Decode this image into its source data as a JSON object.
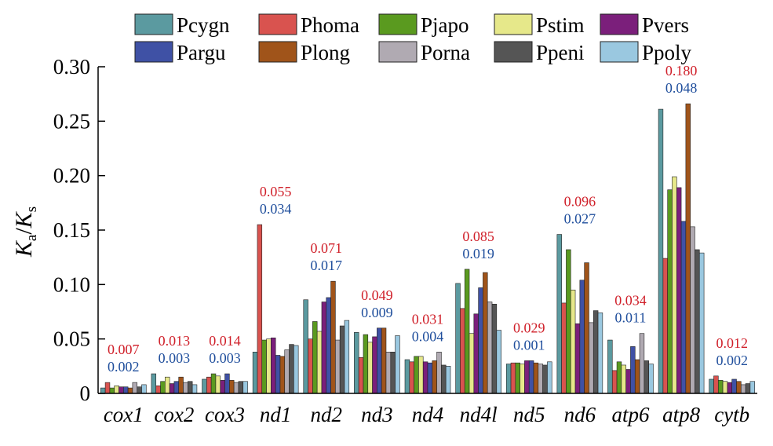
{
  "chart_data": {
    "type": "bar",
    "ylabel": {
      "main": "K",
      "sub1": "a",
      "slash": "/",
      "main2": "K",
      "sub2": "s"
    },
    "ylim": [
      0,
      0.3
    ],
    "yticks": [
      "0",
      "0.05",
      "0.10",
      "0.15",
      "0.20",
      "0.25",
      "0.30"
    ],
    "ytick_values": [
      0,
      0.05,
      0.1,
      0.15,
      0.2,
      0.25,
      0.3
    ],
    "legend_position": "top",
    "categories": [
      "cox1",
      "cox2",
      "cox3",
      "nd1",
      "nd2",
      "nd3",
      "nd4",
      "nd4l",
      "nd5",
      "nd6",
      "atp6",
      "atp8",
      "cytb"
    ],
    "series": [
      {
        "name": "Pcygn",
        "color": "#5b9aa0",
        "values": [
          0.005,
          0.018,
          0.013,
          0.038,
          0.086,
          0.056,
          0.031,
          0.101,
          0.027,
          0.146,
          0.049,
          0.261,
          0.013
        ]
      },
      {
        "name": "Phoma",
        "color": "#d9534f",
        "values": [
          0.01,
          0.007,
          0.015,
          0.155,
          0.05,
          0.033,
          0.029,
          0.078,
          0.028,
          0.083,
          0.021,
          0.124,
          0.016
        ]
      },
      {
        "name": "Pjapo",
        "color": "#5a9a1f",
        "values": [
          0.005,
          0.011,
          0.018,
          0.049,
          0.066,
          0.054,
          0.034,
          0.114,
          0.028,
          0.132,
          0.029,
          0.187,
          0.012
        ]
      },
      {
        "name": "Pstim",
        "color": "#e6e88a",
        "values": [
          0.007,
          0.015,
          0.016,
          0.05,
          0.057,
          0.047,
          0.034,
          0.055,
          0.027,
          0.095,
          0.026,
          0.199,
          0.011
        ]
      },
      {
        "name": "Pvers",
        "color": "#7b1f7b",
        "values": [
          0.006,
          0.009,
          0.012,
          0.051,
          0.084,
          0.052,
          0.029,
          0.073,
          0.03,
          0.064,
          0.022,
          0.189,
          0.01
        ]
      },
      {
        "name": "Pargu",
        "color": "#3f51a5",
        "values": [
          0.006,
          0.011,
          0.018,
          0.035,
          0.088,
          0.06,
          0.028,
          0.097,
          0.03,
          0.104,
          0.043,
          0.158,
          0.013
        ]
      },
      {
        "name": "Plong",
        "color": "#a0541a",
        "values": [
          0.005,
          0.015,
          0.012,
          0.034,
          0.103,
          0.06,
          0.03,
          0.111,
          0.028,
          0.12,
          0.031,
          0.266,
          0.011
        ]
      },
      {
        "name": "Porna",
        "color": "#b0aab2",
        "values": [
          0.01,
          0.01,
          0.01,
          0.04,
          0.049,
          0.038,
          0.038,
          0.084,
          0.027,
          0.065,
          0.055,
          0.153,
          0.008
        ]
      },
      {
        "name": "Ppeni",
        "color": "#555555",
        "values": [
          0.006,
          0.011,
          0.011,
          0.045,
          0.062,
          0.038,
          0.026,
          0.082,
          0.026,
          0.076,
          0.03,
          0.132,
          0.009
        ]
      },
      {
        "name": "Ppoly",
        "color": "#9ac8e0",
        "values": [
          0.008,
          0.008,
          0.011,
          0.044,
          0.067,
          0.053,
          0.025,
          0.058,
          0.029,
          0.074,
          0.027,
          0.129,
          0.011
        ]
      }
    ],
    "annotations": [
      {
        "category": "cox1",
        "red": "0.007",
        "blue": "0.002"
      },
      {
        "category": "cox2",
        "red": "0.013",
        "blue": "0.003"
      },
      {
        "category": "cox3",
        "red": "0.014",
        "blue": "0.003"
      },
      {
        "category": "nd1",
        "red": "0.055",
        "blue": "0.034"
      },
      {
        "category": "nd2",
        "red": "0.071",
        "blue": "0.017"
      },
      {
        "category": "nd3",
        "red": "0.049",
        "blue": "0.009"
      },
      {
        "category": "nd4",
        "red": "0.031",
        "blue": "0.004"
      },
      {
        "category": "nd4l",
        "red": "0.085",
        "blue": "0.019"
      },
      {
        "category": "nd5",
        "red": "0.029",
        "blue": "0.001"
      },
      {
        "category": "nd6",
        "red": "0.096",
        "blue": "0.027"
      },
      {
        "category": "atp6",
        "red": "0.034",
        "blue": "0.011"
      },
      {
        "category": "atp8",
        "red": "0.180",
        "blue": "0.048"
      },
      {
        "category": "cytb",
        "red": "0.012",
        "blue": "0.002"
      }
    ],
    "annotation_colors": {
      "red": "#d0202a",
      "blue": "#1f4e9c"
    }
  }
}
